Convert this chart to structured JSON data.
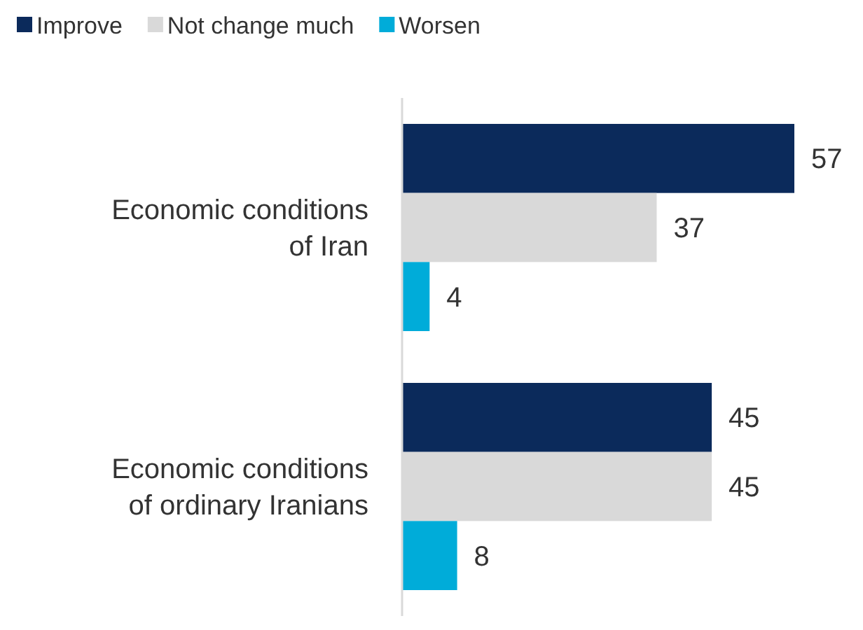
{
  "chart_data": {
    "type": "bar",
    "orientation": "horizontal",
    "categories": [
      "Economic conditions of Iran",
      "Economic conditions of ordinary Iranians"
    ],
    "series": [
      {
        "name": "Improve",
        "color": "#0b2a5b",
        "values": [
          57,
          45
        ]
      },
      {
        "name": "Not change much",
        "color": "#d9d9d9",
        "values": [
          37,
          45
        ]
      },
      {
        "name": "Worsen",
        "color": "#00acd9",
        "values": [
          4,
          8
        ]
      }
    ],
    "data_labels": true,
    "legend": "top left"
  }
}
